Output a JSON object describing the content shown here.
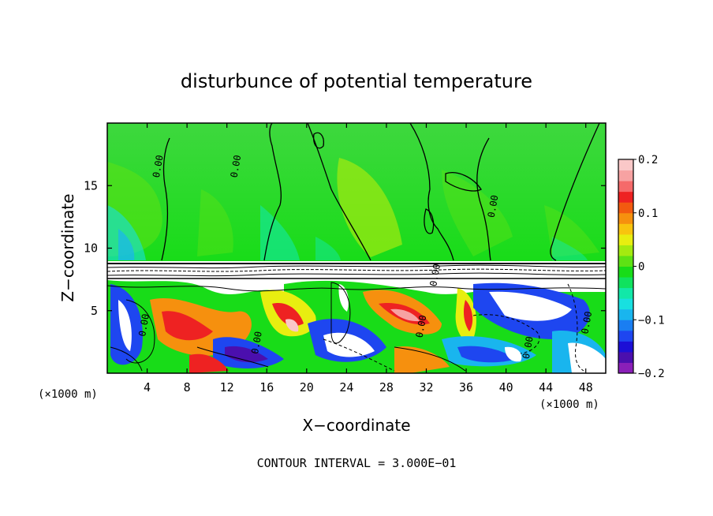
{
  "chart_data": {
    "type": "heatmap",
    "title": "disturbunce of potential temperature",
    "xlabel": "X−coordinate",
    "ylabel": "Z−coordinate",
    "x_unit_left": "(×1000 m)",
    "x_unit_right": "(×1000 m)",
    "xlim": [
      0,
      50
    ],
    "ylim": [
      0,
      20
    ],
    "x_ticks": [
      4,
      8,
      12,
      16,
      20,
      24,
      28,
      32,
      36,
      40,
      44,
      48
    ],
    "y_ticks": [
      5,
      10,
      15
    ],
    "contour_interval_text": "CONTOUR INTERVAL = 3.000E−01",
    "colorbar": {
      "range": [
        -0.2,
        0.2
      ],
      "tick_values": [
        0.2,
        0.1,
        0,
        -0.1,
        -0.2
      ],
      "tick_labels": [
        "0.2",
        "0.1",
        "0",
        "−0.1",
        "−0.2"
      ],
      "colors": [
        "#8a1fb8",
        "#4b0fae",
        "#1c0fd6",
        "#1e46f0",
        "#1a7ef2",
        "#19b5ee",
        "#18e0e0",
        "#12e8a8",
        "#10e25e",
        "#18dc18",
        "#5ee214",
        "#a4ea10",
        "#e8ee10",
        "#f8c40e",
        "#f6900e",
        "#f25a10",
        "#ee2222",
        "#f56a6a",
        "#f7a2a2",
        "#fac8c8"
      ]
    },
    "contour_labels": [
      {
        "text": "0.00",
        "x": 5.4,
        "z": 16.5
      },
      {
        "text": "0.00",
        "x": 13.2,
        "z": 16.5
      },
      {
        "text": "0.00",
        "x": 39.0,
        "z": 13.3
      },
      {
        "text": "0.00",
        "x": 4.0,
        "z": 3.8
      },
      {
        "text": "0.00",
        "x": 15.3,
        "z": 2.4
      },
      {
        "text": "0.00",
        "x": 31.8,
        "z": 3.7
      },
      {
        "text": "0.00",
        "x": 33.2,
        "z": 7.8
      },
      {
        "text": "0.00",
        "x": 42.5,
        "z": 2.0
      },
      {
        "text": "0.00",
        "x": 48.4,
        "z": 4.0
      }
    ]
  }
}
